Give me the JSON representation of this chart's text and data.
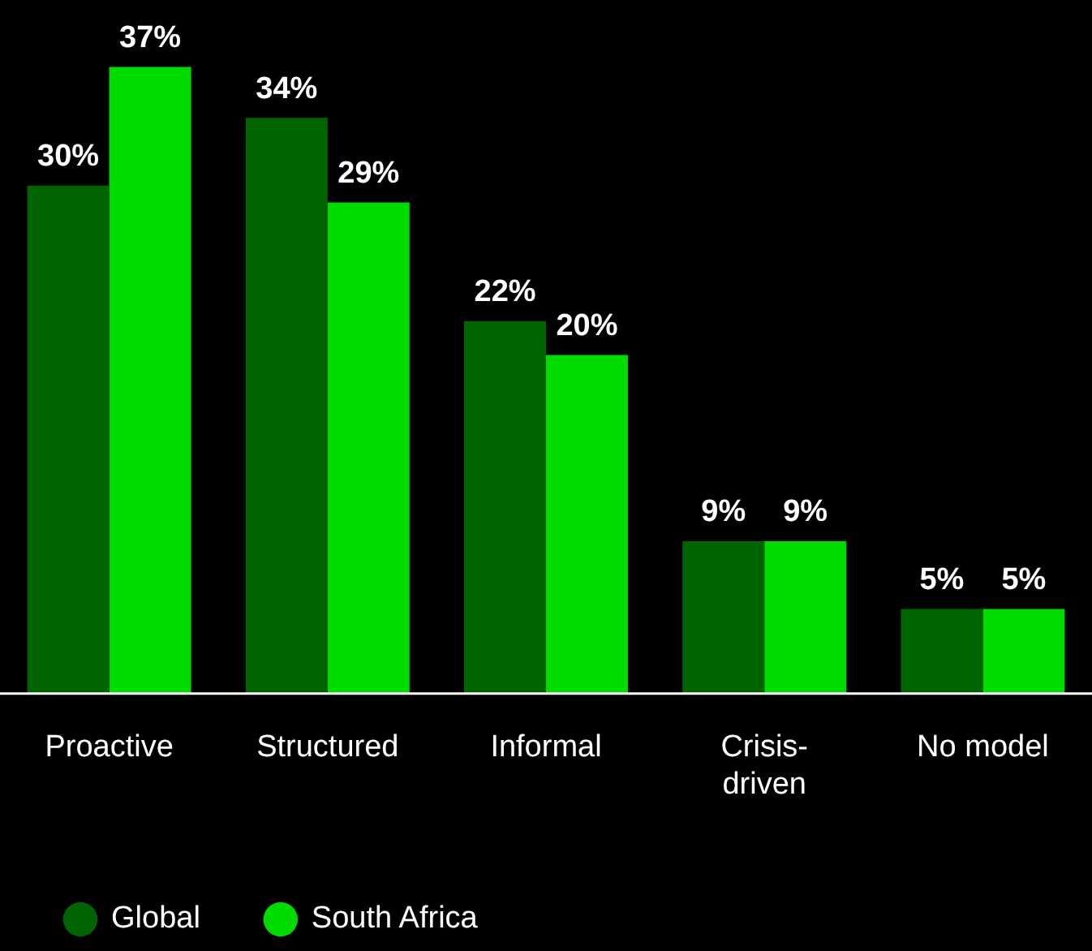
{
  "chart_data": {
    "type": "bar",
    "categories": [
      "Proactive",
      "Structured",
      "Informal",
      "Crisis-driven",
      "No model"
    ],
    "series": [
      {
        "name": "Global",
        "color": "#006400",
        "values": [
          30,
          34,
          22,
          9,
          5
        ],
        "value_labels": [
          "30%",
          "34%",
          "22%",
          "9%",
          "5%"
        ]
      },
      {
        "name": "South Africa",
        "color": "#00dc00",
        "values": [
          37,
          29,
          20,
          9,
          5
        ],
        "value_labels": [
          "37%",
          "29%",
          "20%",
          "9%",
          "5%"
        ]
      }
    ],
    "legend": "bottom left"
  }
}
